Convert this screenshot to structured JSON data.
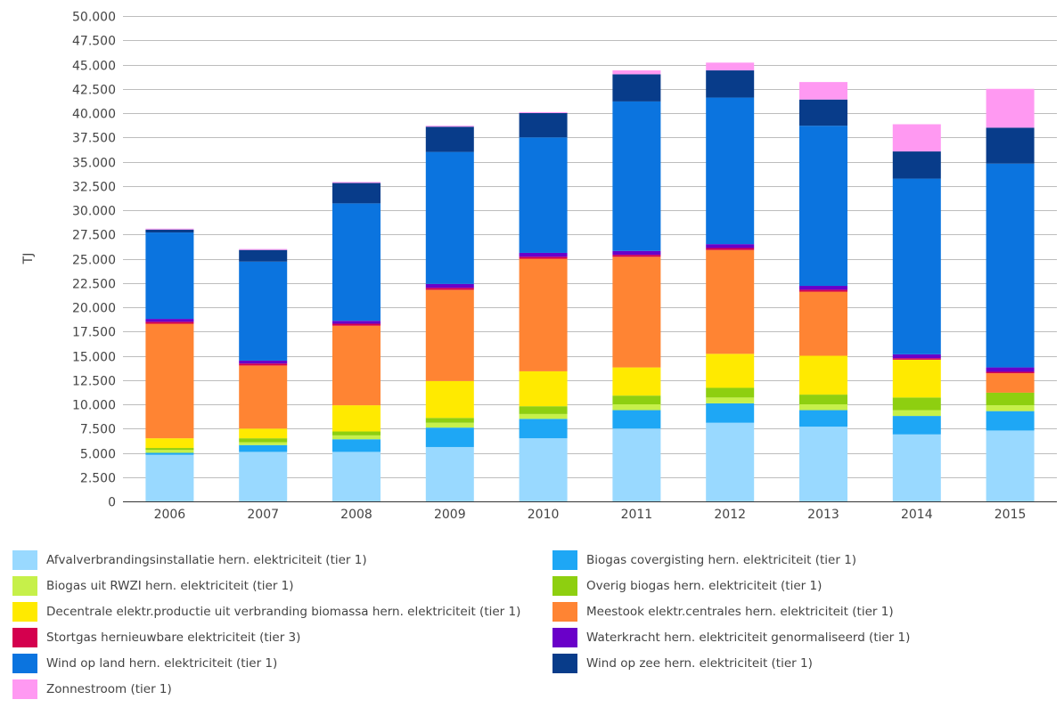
{
  "chart_data": {
    "type": "bar",
    "stacked": true,
    "title": "",
    "xlabel": "",
    "ylabel": "TJ",
    "ylim": [
      0,
      50000
    ],
    "ytick_step": 2500,
    "grid": true,
    "legend_placement": "bottom",
    "categories": [
      "2006",
      "2007",
      "2008",
      "2009",
      "2010",
      "2011",
      "2012",
      "2013",
      "2014",
      "2015"
    ],
    "y_tick_labels": [
      "0",
      "2.500",
      "5.000",
      "7.500",
      "10.000",
      "12.500",
      "15.000",
      "17.500",
      "20.000",
      "22.500",
      "25.000",
      "27.500",
      "30.000",
      "32.500",
      "35.000",
      "37.500",
      "40.000",
      "42.500",
      "45.000",
      "47.500",
      "50.000"
    ],
    "series": [
      {
        "name": "Afvalverbrandingsinstallatie hern. elektriciteit (tier 1)",
        "color": "#99d9ff",
        "values": [
          4800,
          5100,
          5100,
          5600,
          6500,
          7500,
          8100,
          7700,
          6900,
          7300
        ]
      },
      {
        "name": "Biogas covergisting hern. elektriciteit (tier 1)",
        "color": "#1ea7f5",
        "values": [
          200,
          700,
          1300,
          2000,
          2000,
          1900,
          2000,
          1700,
          1900,
          2000
        ]
      },
      {
        "name": "Biogas uit RWZI hern. elektriciteit (tier 1)",
        "color": "#c6f04a",
        "values": [
          300,
          300,
          400,
          500,
          500,
          600,
          600,
          600,
          600,
          600
        ]
      },
      {
        "name": "Overig biogas hern. elektriciteit (tier 1)",
        "color": "#8ecf10",
        "values": [
          200,
          400,
          400,
          500,
          800,
          900,
          1000,
          1000,
          1300,
          1300
        ]
      },
      {
        "name": "Decentrale elektr.productie uit verbranding biomassa hern. elektriciteit (tier 1)",
        "color": "#ffea00",
        "values": [
          1000,
          1000,
          2700,
          3800,
          3600,
          2900,
          3500,
          4000,
          3900,
          0
        ]
      },
      {
        "name": "Meestook elektr.centrales hern. elektriciteit (tier 1)",
        "color": "#ff8433",
        "values": [
          11800,
          6500,
          8200,
          9400,
          11600,
          11400,
          10700,
          6600,
          0,
          2000
        ]
      },
      {
        "name": "Stortgas hernieuwbare elektriciteit (tier 3)",
        "color": "#d4004e",
        "values": [
          200,
          200,
          200,
          200,
          200,
          200,
          200,
          200,
          150,
          150
        ]
      },
      {
        "name": "Waterkracht hern. elektriciteit genormaliseerd (tier 1)",
        "color": "#6a00c9",
        "values": [
          300,
          300,
          300,
          400,
          400,
          400,
          400,
          400,
          400,
          450
        ]
      },
      {
        "name": "Wind op land hern. elektriciteit (tier 1)",
        "color": "#0b74df",
        "values": [
          8900,
          10200,
          12100,
          13600,
          11900,
          15400,
          15100,
          16500,
          18100,
          21000
        ]
      },
      {
        "name": "Wind op zee hern. elektriciteit (tier 1)",
        "color": "#083c8a",
        "values": [
          300,
          1200,
          2100,
          2600,
          2500,
          2800,
          2800,
          2700,
          2800,
          3700
        ]
      },
      {
        "name": "Zonnestroom (tier 1)",
        "color": "#ff99f2",
        "values": [
          100,
          100,
          100,
          100,
          100,
          400,
          800,
          1800,
          2800,
          4000
        ]
      }
    ]
  }
}
